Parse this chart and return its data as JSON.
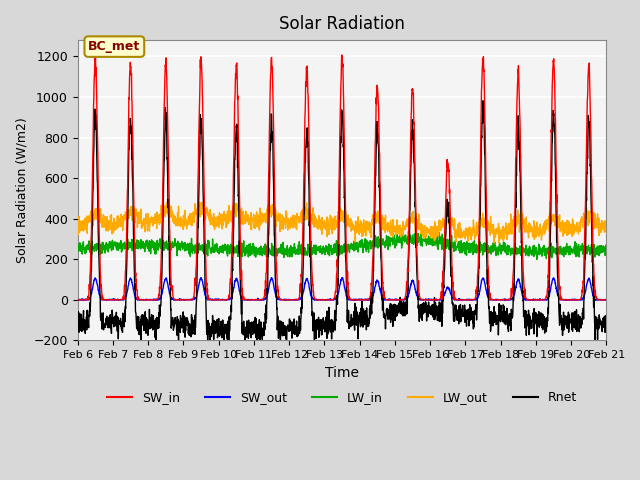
{
  "title": "Solar Radiation",
  "xlabel": "Time",
  "ylabel": "Solar Radiation (W/m2)",
  "ylim": [
    -200,
    1280
  ],
  "yticks": [
    -200,
    0,
    200,
    400,
    600,
    800,
    1000,
    1200
  ],
  "x_labels": [
    "Feb 6",
    "Feb 7",
    "Feb 8",
    "Feb 9",
    "Feb 10",
    "Feb 11",
    "Feb 12",
    "Feb 13",
    "Feb 14",
    "Feb 15",
    "Feb 16",
    "Feb 17",
    "Feb 18",
    "Feb 19",
    "Feb 20",
    "Feb 21"
  ],
  "colors": {
    "SW_in": "#ff0000",
    "SW_out": "#0000ff",
    "LW_in": "#00aa00",
    "LW_out": "#ffaa00",
    "Rnet": "#000000"
  },
  "fig_bg_color": "#d8d8d8",
  "plot_bg": "#f4f4f4",
  "annotation_text": "BC_met",
  "annotation_bg": "#ffffcc",
  "annotation_border": "#aa8800",
  "annotation_text_color": "#880000",
  "n_days": 15,
  "points_per_day": 144
}
